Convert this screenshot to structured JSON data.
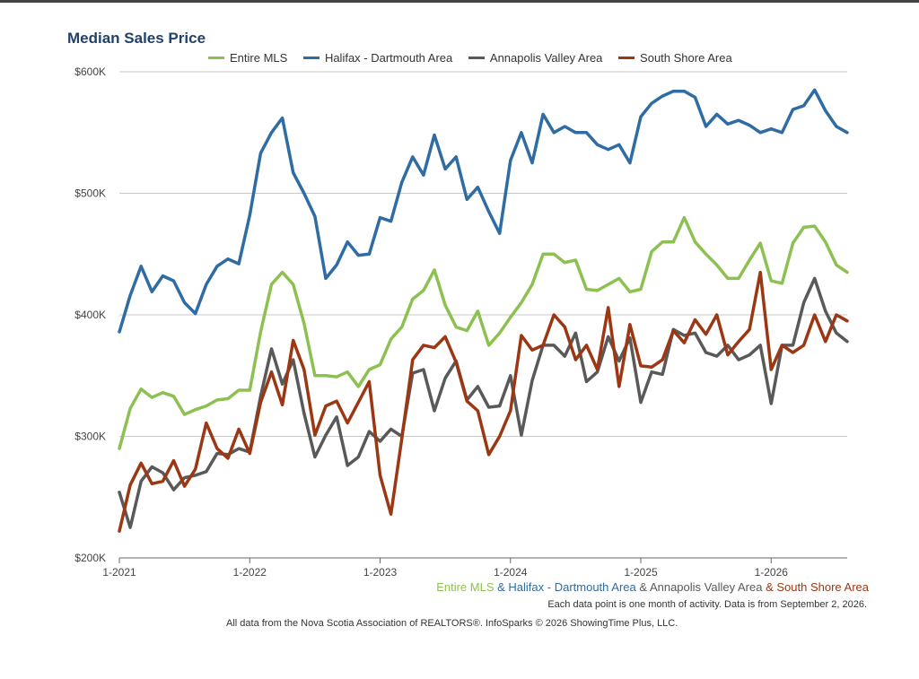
{
  "chart_data": {
    "type": "line",
    "title": "Median Sales Price",
    "xlabel": "",
    "ylabel": "",
    "ylim": [
      200000,
      600000
    ],
    "y_ticks": [
      {
        "value": 200000,
        "label": "$200K"
      },
      {
        "value": 300000,
        "label": "$300K"
      },
      {
        "value": 400000,
        "label": "$400K"
      },
      {
        "value": 500000,
        "label": "$500K"
      },
      {
        "value": 600000,
        "label": "$600K"
      }
    ],
    "x_ticks": [
      {
        "index": 0,
        "label": "1-2021"
      },
      {
        "index": 12,
        "label": "1-2022"
      },
      {
        "index": 24,
        "label": "1-2023"
      },
      {
        "index": 36,
        "label": "1-2024"
      },
      {
        "index": 48,
        "label": "1-2025"
      },
      {
        "index": 60,
        "label": "1-2026"
      }
    ],
    "grid": true,
    "legend_position": "top",
    "series": [
      {
        "name": "Entire MLS",
        "color": "#8cc152",
        "values": [
          290000,
          323000,
          339000,
          332000,
          336000,
          333000,
          318000,
          322000,
          325000,
          330000,
          331000,
          338000,
          338000,
          386000,
          425000,
          435000,
          425000,
          393000,
          350000,
          350000,
          349000,
          353000,
          341000,
          355000,
          359000,
          380000,
          390000,
          413000,
          420000,
          437000,
          408000,
          390000,
          387000,
          403000,
          375000,
          385000,
          398000,
          410000,
          425000,
          450000,
          450000,
          443000,
          445000,
          421000,
          420000,
          425000,
          430000,
          419000,
          421000,
          452000,
          460000,
          460000,
          480000,
          460000,
          450000,
          441000,
          430000,
          430000,
          445000,
          459000,
          428000,
          426000,
          459000,
          472000,
          473000,
          460000,
          441000,
          435000
        ]
      },
      {
        "name": "Halifax - Dartmouth Area",
        "color": "#2f6ca3",
        "values": [
          386000,
          416000,
          440000,
          419000,
          432000,
          428000,
          410000,
          401000,
          425000,
          440000,
          446000,
          442000,
          482000,
          533000,
          550000,
          562000,
          517000,
          500000,
          481000,
          430000,
          441000,
          460000,
          449000,
          450000,
          480000,
          477000,
          509000,
          530000,
          515000,
          548000,
          520000,
          530000,
          495000,
          505000,
          485000,
          467000,
          527000,
          550000,
          525000,
          565000,
          550000,
          555000,
          550000,
          550000,
          540000,
          536000,
          540000,
          525000,
          563000,
          574000,
          580000,
          584000,
          584000,
          579000,
          555000,
          565000,
          557000,
          560000,
          556000,
          550000,
          553000,
          550000,
          569000,
          572000,
          585000,
          568000,
          555000,
          550000
        ]
      },
      {
        "name": "Annapolis Valley Area",
        "color": "#595959",
        "values": [
          254000,
          225000,
          263000,
          275000,
          270000,
          256000,
          266000,
          268000,
          271000,
          286000,
          285000,
          290000,
          287000,
          333000,
          372000,
          343000,
          363000,
          319000,
          283000,
          301000,
          316000,
          276000,
          283000,
          304000,
          296000,
          306000,
          300000,
          352000,
          355000,
          321000,
          348000,
          362000,
          330000,
          341000,
          324000,
          325000,
          350000,
          301000,
          346000,
          375000,
          375000,
          366000,
          385000,
          345000,
          353000,
          382000,
          362000,
          381000,
          328000,
          353000,
          351000,
          388000,
          383000,
          385000,
          369000,
          366000,
          375000,
          363000,
          367000,
          375000,
          327000,
          375000,
          375000,
          410000,
          430000,
          403000,
          385000,
          378000
        ]
      },
      {
        "name": "South Shore Area",
        "color": "#9c3714",
        "values": [
          222000,
          260000,
          278000,
          261000,
          263000,
          280000,
          259000,
          273000,
          311000,
          290000,
          282000,
          306000,
          286000,
          328000,
          353000,
          326000,
          379000,
          355000,
          301000,
          325000,
          329000,
          311000,
          328000,
          345000,
          268000,
          236000,
          298000,
          363000,
          375000,
          373000,
          382000,
          361000,
          329000,
          321000,
          285000,
          300000,
          321000,
          383000,
          371000,
          375000,
          400000,
          390000,
          363000,
          375000,
          355000,
          406000,
          341000,
          392000,
          358000,
          357000,
          363000,
          387000,
          377000,
          396000,
          384000,
          400000,
          367000,
          378000,
          388000,
          435000,
          355000,
          375000,
          369000,
          375000,
          400000,
          378000,
          400000,
          395000
        ]
      }
    ]
  },
  "footer": {
    "legend_parts": [
      {
        "text": "Entire MLS",
        "color": "#8cc152"
      },
      {
        "text": " & ",
        "color": "#2f6ca3"
      },
      {
        "text": "Halifax - Dartmouth Area",
        "color": "#2f6ca3"
      },
      {
        "text": " & ",
        "color": "#595959"
      },
      {
        "text": "Annapolis Valley Area",
        "color": "#595959"
      },
      {
        "text": " & ",
        "color": "#9c3714"
      },
      {
        "text": "South Shore Area",
        "color": "#9c3714"
      }
    ],
    "note": "Each data point is one month of activity. Data is from September 2, 2026.",
    "credit": "All data from the Nova Scotia Association of REALTORS®. InfoSparks © 2026 ShowingTime Plus, LLC."
  }
}
